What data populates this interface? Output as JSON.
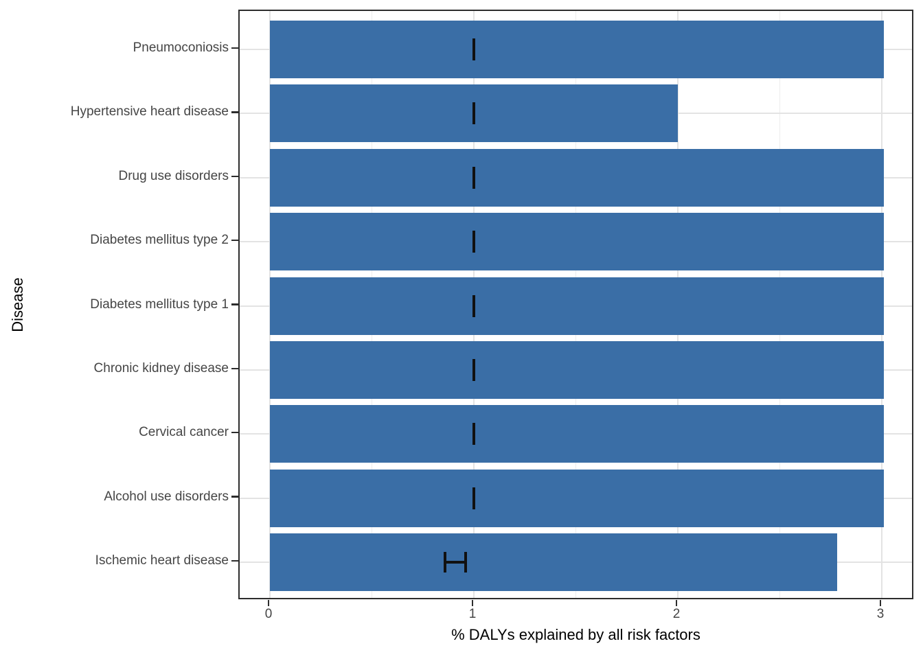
{
  "figure": {
    "background": "#FFFFFF",
    "title": ""
  },
  "chart_data": {
    "type": "bar",
    "orientation": "horizontal",
    "title": "",
    "xlabel": "% DALYs explained by all risk factors",
    "ylabel": "Disease",
    "xlim": [
      -0.15,
      3.16
    ],
    "x_major_ticks": [
      0,
      1,
      2,
      3
    ],
    "x_minor_ticks": [
      0.5,
      1.5,
      2.5
    ],
    "grid": {
      "vertical": "major+minor",
      "horizontal": "major-only",
      "major_color": "#E3E3E3",
      "minor_color": "#EDEDED"
    },
    "legend": "none",
    "bar_color": "#3A6EA6",
    "errorbar_color": "#111111",
    "categories": [
      "Pneumoconiosis",
      "Hypertensive heart disease",
      "Drug use disorders",
      "Diabetes mellitus type 2",
      "Diabetes mellitus type 1",
      "Chronic kidney disease",
      "Cervical cancer",
      "Alcohol use disorders",
      "Ischemic heart disease"
    ],
    "values": [
      3.01,
      2.0,
      3.01,
      3.01,
      3.01,
      3.01,
      3.01,
      3.01,
      2.78
    ],
    "error_bars": [
      {
        "low": 1.0,
        "high": 1.0
      },
      {
        "low": 1.0,
        "high": 1.0
      },
      {
        "low": 1.0,
        "high": 1.0
      },
      {
        "low": 1.0,
        "high": 1.0
      },
      {
        "low": 1.0,
        "high": 1.0
      },
      {
        "low": 1.0,
        "high": 1.0
      },
      {
        "low": 1.0,
        "high": 1.0
      },
      {
        "low": 1.0,
        "high": 1.0
      },
      {
        "low": 0.86,
        "high": 0.96
      }
    ]
  }
}
